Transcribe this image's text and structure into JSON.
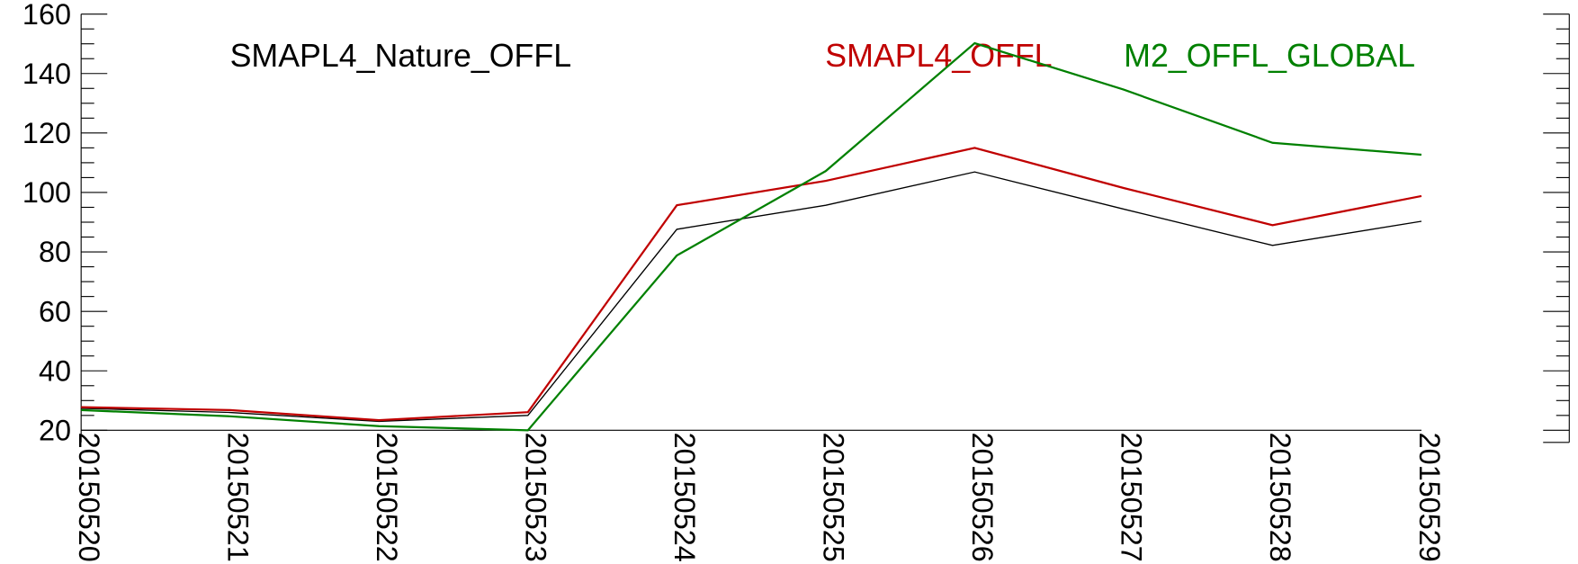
{
  "chart_data": {
    "type": "line",
    "categories": [
      "20150520",
      "20150521",
      "20150522",
      "20150523",
      "20150524",
      "20150525",
      "20150526",
      "20150527",
      "20150528",
      "20150529"
    ],
    "series": [
      {
        "name": "SMAPL4_Nature_OFFL",
        "color": "#000000",
        "values": [
          27.4,
          26.0,
          23.0,
          25.0,
          87.6,
          95.7,
          106.9,
          94.4,
          82.2,
          90.3
        ]
      },
      {
        "name": "SMAPL4_OFFL",
        "color": "#c00000",
        "values": [
          27.8,
          26.8,
          23.4,
          26.1,
          95.7,
          103.9,
          115.0,
          101.5,
          89.0,
          98.8
        ]
      },
      {
        "name": "M2_OFFL_GLOBAL",
        "color": "#008000",
        "values": [
          26.8,
          24.7,
          21.4,
          20.0,
          78.8,
          107.2,
          150.2,
          134.6,
          116.7,
          112.7
        ]
      }
    ],
    "ylim": [
      20,
      160
    ],
    "yticks": [
      20,
      40,
      60,
      80,
      100,
      120,
      140,
      160
    ]
  }
}
